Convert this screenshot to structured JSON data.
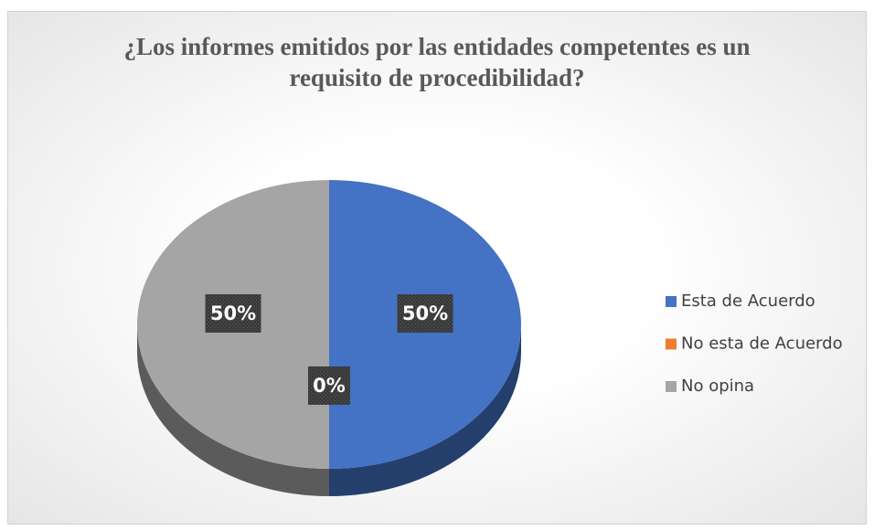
{
  "chart_data": {
    "type": "pie",
    "title": "¿Los informes emitidos por las entidades competentes es un requisito de procedibilidad?",
    "categories": [
      "Esta de Acuerdo",
      "No esta de Acuerdo",
      "No opina"
    ],
    "values": [
      50,
      0,
      50
    ],
    "value_labels": [
      "50%",
      "0%",
      "50%"
    ],
    "colors": [
      "#4472c4",
      "#ed7d31",
      "#a5a5a5"
    ],
    "legend": "right"
  }
}
